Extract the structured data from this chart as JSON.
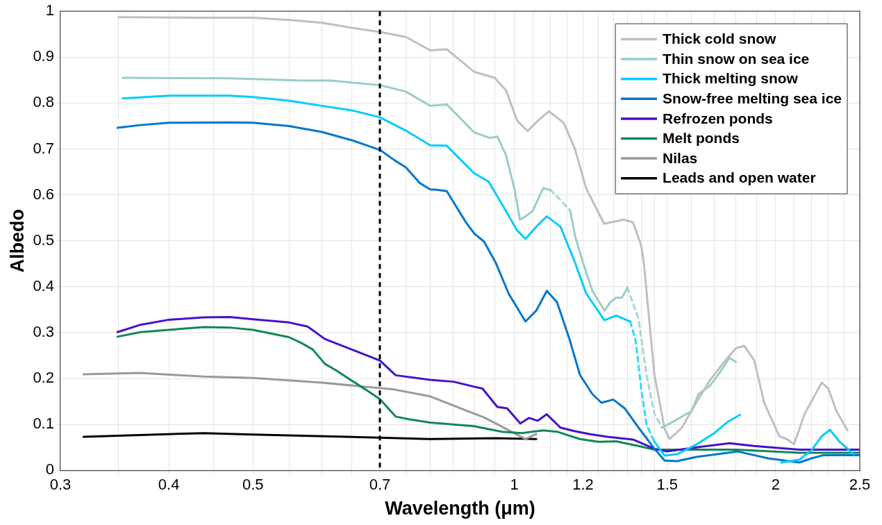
{
  "chart_data": {
    "type": "line",
    "xlabel": "Wavelength (μm)",
    "ylabel": "Albedo",
    "log": "x",
    "grid": true,
    "legend": "top right",
    "marker": "none",
    "line_style": "solid",
    "xlim": [
      0.3,
      2.5
    ],
    "ylim": [
      0,
      1
    ],
    "xticks": [
      0.3,
      {
        "value": 0.35,
        "label": null
      },
      0.4,
      {
        "value": 0.45,
        "label": null
      },
      0.5,
      {
        "value": 0.55,
        "label": null
      },
      {
        "value": 0.6,
        "label": null
      },
      {
        "value": 0.65,
        "label": null
      },
      0.7,
      {
        "value": 0.75,
        "label": null
      },
      {
        "value": 0.8,
        "label": null
      },
      {
        "value": 0.85,
        "label": null
      },
      {
        "value": 0.9,
        "label": null
      },
      {
        "value": 0.95,
        "label": null
      },
      1,
      {
        "value": 1.05,
        "label": null
      },
      {
        "value": 1.1,
        "label": null
      },
      {
        "value": 1.15,
        "label": null
      },
      1.2,
      {
        "value": 1.25,
        "label": null
      },
      {
        "value": 1.3,
        "label": null
      },
      {
        "value": 1.35,
        "label": null
      },
      {
        "value": 1.4,
        "label": null
      },
      {
        "value": 1.45,
        "label": null
      },
      1.5,
      {
        "value": 1.6,
        "label": null
      },
      {
        "value": 1.7,
        "label": null
      },
      {
        "value": 1.8,
        "label": null
      },
      {
        "value": 1.9,
        "label": null
      },
      2,
      {
        "value": 2.1,
        "label": null
      },
      {
        "value": 2.2,
        "label": null
      },
      {
        "value": 2.3,
        "label": null
      },
      {
        "value": 2.4,
        "label": null
      },
      2.5
    ],
    "yticks": [
      0,
      0.1,
      0.2,
      0.3,
      0.4,
      0.5,
      0.6,
      0.7,
      0.8,
      0.9,
      1
    ],
    "ref_lines": [
      {
        "axis": "x",
        "value": 0.7,
        "color": "#000000",
        "line_style": "dashed"
      }
    ],
    "series": [
      {
        "name": "Thick cold snow",
        "color": "#bfbfbf",
        "x": [
          0.35,
          0.45,
          0.5,
          0.55,
          0.6,
          0.65,
          0.7,
          0.75,
          0.8,
          0.836,
          0.899,
          0.949,
          0.978,
          1.008,
          1.036,
          1.064,
          1.096,
          1.14,
          1.175,
          1.21,
          1.269,
          1.337,
          1.37,
          1.4,
          1.41,
          1.45,
          1.49,
          1.51,
          1.56,
          1.62,
          1.68,
          1.75,
          1.8,
          1.84,
          1.89,
          1.94,
          2.02,
          2.06,
          2.1,
          2.16,
          2.26,
          2.3,
          2.35,
          2.42
        ],
        "values": [
          0.987,
          0.986,
          0.986,
          0.981,
          0.975,
          0.964,
          0.955,
          0.944,
          0.915,
          0.917,
          0.868,
          0.855,
          0.828,
          0.761,
          0.739,
          0.761,
          0.782,
          0.757,
          0.699,
          0.614,
          0.537,
          0.546,
          0.54,
          0.49,
          0.452,
          0.208,
          0.09,
          0.068,
          0.093,
          0.147,
          0.196,
          0.239,
          0.266,
          0.271,
          0.239,
          0.147,
          0.074,
          0.068,
          0.057,
          0.123,
          0.191,
          0.178,
          0.129,
          0.087
        ]
      },
      {
        "name": "Thin snow on sea ice",
        "color": "#99cccc",
        "x": [
          0.354,
          0.47,
          0.569,
          0.615,
          0.7,
          0.75,
          0.8,
          0.836,
          0.899,
          0.937,
          0.956,
          0.978,
          1.0,
          1.015,
          1.03,
          1.05,
          1.08,
          1.1,
          1.13,
          1.16,
          1.175,
          1.2,
          1.23,
          1.27,
          1.29,
          1.31,
          1.33,
          1.35,
          1.42,
          1.48,
          1.54,
          1.6,
          1.63,
          1.68,
          1.73,
          1.77,
          1.8
        ],
        "values": [
          0.855,
          0.854,
          0.849,
          0.849,
          0.839,
          0.825,
          0.794,
          0.797,
          0.736,
          0.724,
          0.727,
          0.687,
          0.614,
          0.546,
          0.553,
          0.565,
          0.615,
          0.611,
          null,
          0.565,
          0.51,
          0.452,
          0.391,
          0.348,
          0.366,
          0.376,
          0.376,
          0.398,
          null,
          0.093,
          0.111,
          0.129,
          0.166,
          0.184,
          0.217,
          0.245,
          0.236
        ]
      },
      {
        "name": "Thick melting snow",
        "color": "#00ccff",
        "x": [
          0.354,
          0.4,
          0.47,
          0.5,
          0.55,
          0.6,
          0.65,
          0.7,
          0.75,
          0.8,
          0.836,
          0.899,
          0.934,
          0.978,
          1.008,
          1.03,
          1.064,
          1.09,
          1.13,
          1.175,
          1.21,
          1.27,
          1.31,
          1.36,
          1.4,
          1.45,
          1.49,
          1.54,
          1.62,
          1.7,
          1.76,
          1.82,
          1.9,
          2.03,
          2.13,
          2.2,
          2.26,
          2.31,
          2.37,
          2.42,
          2.46
        ],
        "values": [
          0.81,
          0.816,
          0.816,
          0.813,
          0.805,
          0.794,
          0.784,
          0.769,
          0.74,
          0.708,
          0.707,
          0.647,
          0.629,
          0.565,
          0.522,
          0.504,
          0.534,
          0.553,
          0.531,
          0.452,
          0.385,
          0.327,
          0.337,
          0.324,
          null,
          0.062,
          0.032,
          0.035,
          0.056,
          0.081,
          0.105,
          0.121,
          null,
          0.017,
          0.023,
          0.044,
          0.074,
          0.088,
          0.062,
          0.047,
          0.035
        ]
      },
      {
        "name": "Snow-free melting sea ice",
        "color": "#0077cc",
        "x": [
          0.349,
          0.371,
          0.4,
          0.47,
          0.5,
          0.55,
          0.6,
          0.65,
          0.7,
          0.727,
          0.75,
          0.778,
          0.8,
          0.814,
          0.836,
          0.879,
          0.899,
          0.923,
          0.952,
          0.985,
          1.03,
          1.06,
          1.09,
          1.12,
          1.157,
          1.19,
          1.23,
          1.26,
          1.3,
          1.34,
          1.39,
          1.45,
          1.49,
          1.54,
          1.62,
          1.81,
          1.96,
          2.13,
          2.2,
          2.27,
          2.5
        ],
        "values": [
          0.746,
          0.752,
          0.757,
          0.758,
          0.757,
          0.75,
          0.737,
          0.719,
          0.698,
          0.676,
          0.66,
          0.626,
          0.612,
          0.611,
          0.608,
          0.541,
          0.516,
          0.498,
          0.452,
          0.385,
          0.324,
          0.348,
          0.391,
          0.366,
          0.287,
          0.208,
          0.166,
          0.147,
          0.154,
          0.135,
          0.093,
          0.047,
          0.021,
          0.02,
          0.029,
          0.041,
          0.026,
          0.017,
          0.026,
          0.033,
          0.033
        ]
      },
      {
        "name": "Refrozen ponds",
        "color": "#4411cc",
        "x": [
          0.349,
          0.371,
          0.4,
          0.439,
          0.47,
          0.5,
          0.55,
          0.578,
          0.605,
          0.65,
          0.7,
          0.73,
          0.8,
          0.851,
          0.899,
          0.919,
          0.956,
          0.981,
          1.016,
          1.04,
          1.064,
          1.09,
          1.13,
          1.175,
          1.22,
          1.28,
          1.37,
          1.45,
          1.5,
          1.62,
          1.77,
          1.89,
          2.13,
          2.5
        ],
        "values": [
          0.301,
          0.317,
          0.328,
          0.333,
          0.334,
          0.329,
          0.322,
          0.313,
          0.286,
          0.263,
          0.239,
          0.207,
          0.197,
          0.193,
          0.182,
          0.178,
          0.138,
          0.135,
          0.102,
          0.114,
          0.108,
          0.122,
          0.093,
          0.085,
          0.079,
          0.073,
          0.067,
          0.047,
          0.041,
          0.05,
          0.059,
          0.053,
          0.045,
          0.045
        ]
      },
      {
        "name": "Melt ponds",
        "color": "#118855",
        "x": [
          0.349,
          0.371,
          0.4,
          0.439,
          0.47,
          0.5,
          0.55,
          0.569,
          0.586,
          0.605,
          0.624,
          0.65,
          0.674,
          0.7,
          0.73,
          0.756,
          0.8,
          0.899,
          0.968,
          1.02,
          1.08,
          1.12,
          1.19,
          1.25,
          1.31,
          1.39,
          1.45,
          1.62,
          1.8,
          2.13,
          2.5
        ],
        "values": [
          0.291,
          0.301,
          0.306,
          0.312,
          0.311,
          0.306,
          0.29,
          0.277,
          0.263,
          0.232,
          0.217,
          0.195,
          0.176,
          0.155,
          0.117,
          0.111,
          0.104,
          0.096,
          0.084,
          0.081,
          0.087,
          0.084,
          0.068,
          0.062,
          0.063,
          0.053,
          0.045,
          0.045,
          0.045,
          0.038,
          0.038
        ]
      },
      {
        "name": "Nilas",
        "color": "#999999",
        "x": [
          0.319,
          0.371,
          0.439,
          0.5,
          0.55,
          0.6,
          0.7,
          0.727,
          0.8,
          0.926,
          1.03,
          1.06
        ],
        "values": [
          0.209,
          0.212,
          0.204,
          0.201,
          0.196,
          0.191,
          0.179,
          0.176,
          0.161,
          0.114,
          0.068,
          0.079
        ]
      },
      {
        "name": "Leads and open water",
        "color": "#000000",
        "x": [
          0.319,
          0.439,
          0.5,
          0.7,
          0.8,
          0.949,
          1.06
        ],
        "values": [
          0.073,
          0.081,
          0.078,
          0.071,
          0.068,
          0.07,
          0.068
        ]
      },
      {
        "color": "#a6d6d6",
        "line_style": "dashed",
        "x": [
          1.1,
          1.13,
          1.16,
          1.25,
          1.35,
          1.39,
          1.42,
          1.45,
          1.48
        ],
        "values": [
          0.611,
          0.589,
          0.565,
          null,
          0.398,
          0.33,
          0.208,
          0.123,
          0.093
        ]
      },
      {
        "color": "#33d6ff",
        "line_style": "dashed",
        "x": [
          1.36,
          1.38,
          1.4,
          1.42,
          1.45
        ],
        "values": [
          0.324,
          0.281,
          0.178,
          0.099,
          0.062
        ]
      }
    ]
  }
}
